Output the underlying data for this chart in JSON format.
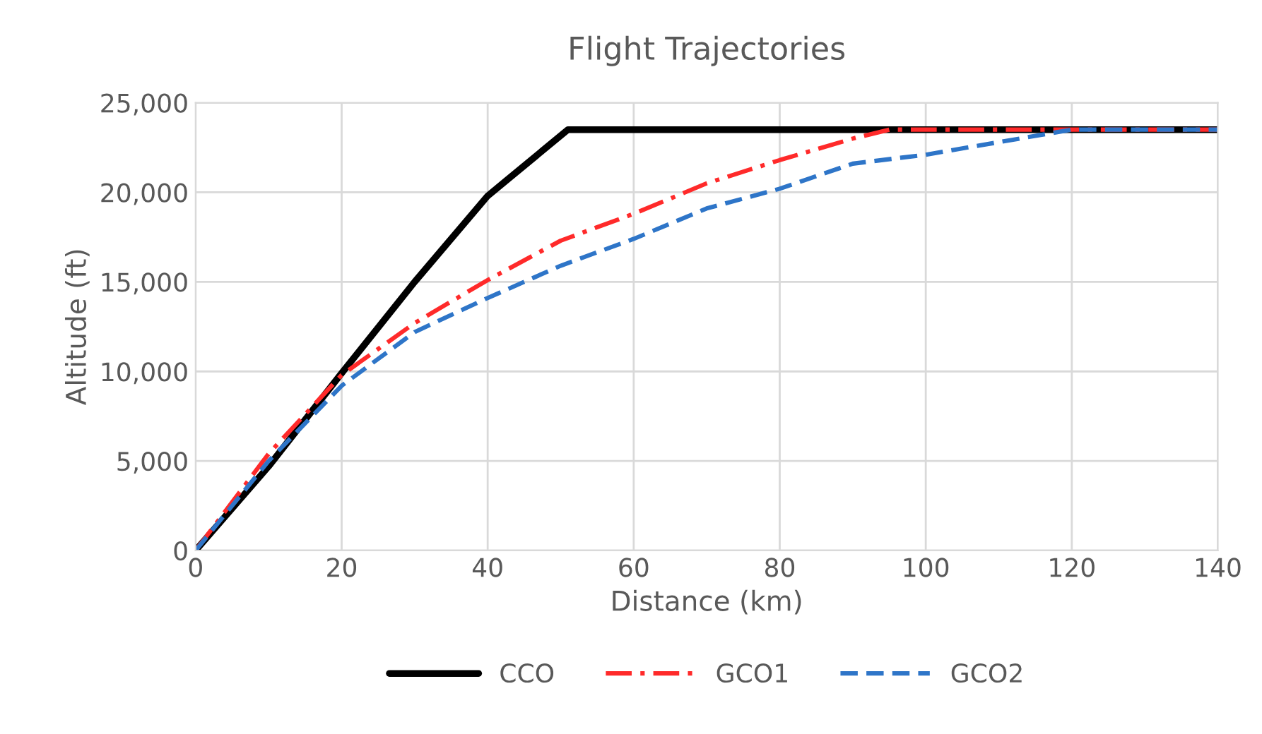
{
  "chart_data": {
    "type": "line",
    "title": "Flight Trajectories",
    "xlabel": "Distance (km)",
    "ylabel": "Altitude (ft)",
    "xlim": [
      0,
      140
    ],
    "xticks": [
      0,
      20,
      40,
      60,
      80,
      100,
      120,
      140
    ],
    "ylim": [
      0,
      25000
    ],
    "yticks": [
      {
        "value": 0,
        "label": "0"
      },
      {
        "value": 5000,
        "label": "5,000"
      },
      {
        "value": 10000,
        "label": "10,000"
      },
      {
        "value": 15000,
        "label": "15,000"
      },
      {
        "value": 20000,
        "label": "20,000"
      },
      {
        "value": 25000,
        "label": "25,000"
      }
    ],
    "grid": true,
    "legend": "bottom",
    "marker": "none",
    "series": [
      {
        "name": "CCO",
        "color": "#000000",
        "line_style": "solid",
        "x": [
          0,
          10,
          20,
          30,
          40,
          51,
          140
        ],
        "values": [
          0,
          4700,
          9900,
          15000,
          19800,
          23500,
          23500
        ]
      },
      {
        "name": "GCO1",
        "color": "#ff2a2a",
        "line_style": "dashdot",
        "x": [
          0,
          10,
          20,
          30,
          40,
          50,
          60,
          70,
          80,
          90,
          95,
          140
        ],
        "values": [
          0,
          5400,
          9800,
          12700,
          15100,
          17300,
          18800,
          20500,
          21800,
          23000,
          23500,
          23500
        ]
      },
      {
        "name": "GCO2",
        "color": "#2e75c8",
        "line_style": "dashed",
        "x": [
          0,
          10,
          20,
          30,
          40,
          50,
          60,
          70,
          80,
          90,
          100,
          110,
          120,
          140
        ],
        "values": [
          0,
          5000,
          9200,
          12200,
          14100,
          15900,
          17400,
          19100,
          20200,
          21600,
          22100,
          22800,
          23500,
          23500
        ]
      }
    ]
  }
}
